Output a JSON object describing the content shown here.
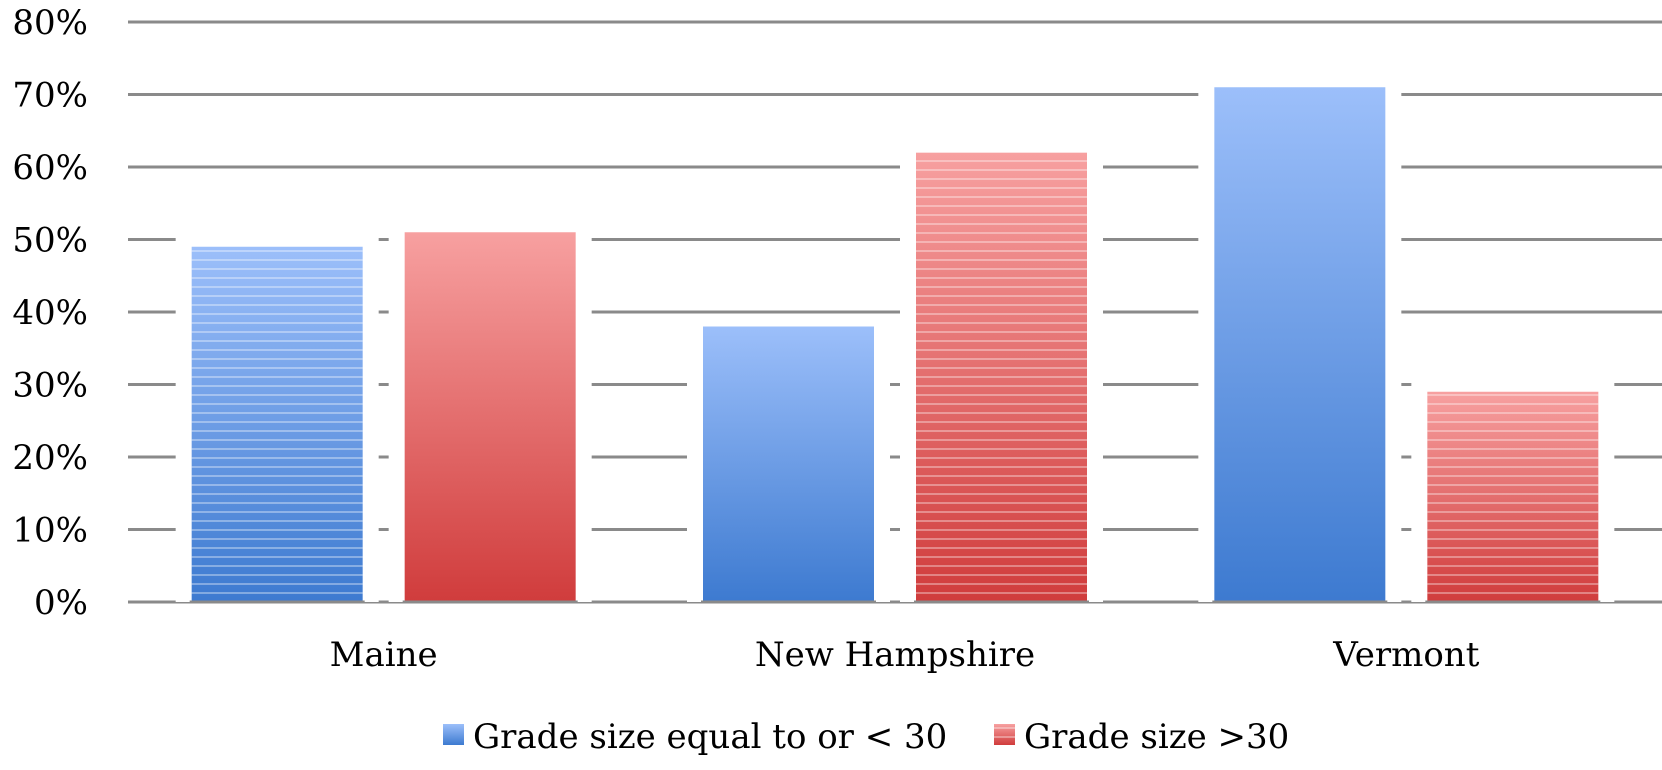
{
  "chart_data": {
    "type": "bar",
    "categories": [
      "Maine",
      "New Hampshire",
      "Vermont"
    ],
    "series": [
      {
        "name": "Grade size equal to or < 30",
        "values": [
          49,
          38,
          71
        ],
        "color": "#4f8fe0",
        "color_light": "#9cbffa",
        "color_dark": "#3d7ad0",
        "pattern": [
          "striped",
          "solid",
          "solid"
        ]
      },
      {
        "name": "Grade size >30",
        "values": [
          51,
          62,
          29
        ],
        "color": "#e06060",
        "color_light": "#f7a0a0",
        "color_dark": "#d03c3c",
        "pattern": [
          "solid",
          "striped",
          "striped"
        ]
      }
    ],
    "ylim": [
      0,
      80
    ],
    "yticks": [
      0,
      10,
      20,
      30,
      40,
      50,
      60,
      70,
      80
    ],
    "ytick_labels": [
      "0%",
      "10%",
      "20%",
      "30%",
      "40%",
      "50%",
      "60%",
      "70%",
      "80%"
    ],
    "title": "",
    "xlabel": "",
    "ylabel": "",
    "grid": true,
    "legend_position": "bottom"
  }
}
